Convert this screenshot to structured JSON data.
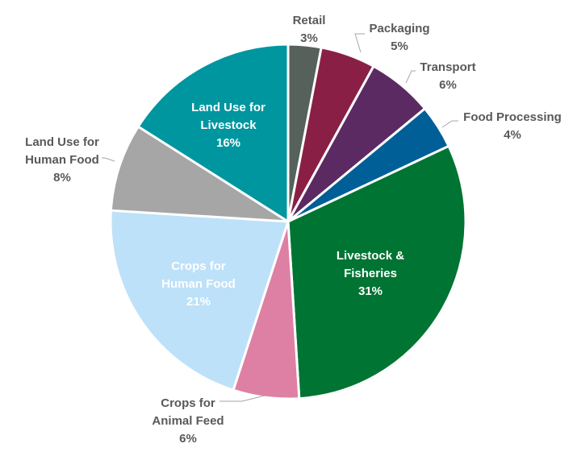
{
  "chart_data": {
    "type": "pie",
    "title": "",
    "slices": [
      {
        "name": "Retail",
        "value": 3,
        "label_lines": [
          "Retail"
        ],
        "value_label": "3%",
        "color": "#56615C",
        "label_position": "outside"
      },
      {
        "name": "Packaging",
        "value": 5,
        "label_lines": [
          "Packaging"
        ],
        "value_label": "5%",
        "color": "#8A1F45",
        "label_position": "outside"
      },
      {
        "name": "Transport",
        "value": 6,
        "label_lines": [
          "Transport"
        ],
        "value_label": "6%",
        "color": "#5C2A62",
        "label_position": "outside"
      },
      {
        "name": "Food Processing",
        "value": 4,
        "label_lines": [
          "Food Processing"
        ],
        "value_label": "4%",
        "color": "#005F96",
        "label_position": "outside"
      },
      {
        "name": "Livestock & Fisheries",
        "value": 31,
        "label_lines": [
          "Livestock &",
          "Fisheries"
        ],
        "value_label": "31%",
        "color": "#007433",
        "label_position": "inside"
      },
      {
        "name": "Crops for Animal Feed",
        "value": 6,
        "label_lines": [
          "Crops for",
          "Animal Feed"
        ],
        "value_label": "6%",
        "color": "#DE80A3",
        "label_position": "outside"
      },
      {
        "name": "Crops for Human Food",
        "value": 21,
        "label_lines": [
          "Crops for",
          "Human Food"
        ],
        "value_label": "21%",
        "color": "#BDE1F8",
        "label_position": "inside"
      },
      {
        "name": "Land Use for Human Food",
        "value": 8,
        "label_lines": [
          "Land Use for",
          "Human Food"
        ],
        "value_label": "8%",
        "color": "#A6A6A6",
        "label_position": "outside"
      },
      {
        "name": "Land Use for Livestock",
        "value": 16,
        "label_lines": [
          "Land Use for",
          "Livestock"
        ],
        "value_label": "16%",
        "color": "#00969F",
        "label_position": "inside"
      }
    ]
  }
}
